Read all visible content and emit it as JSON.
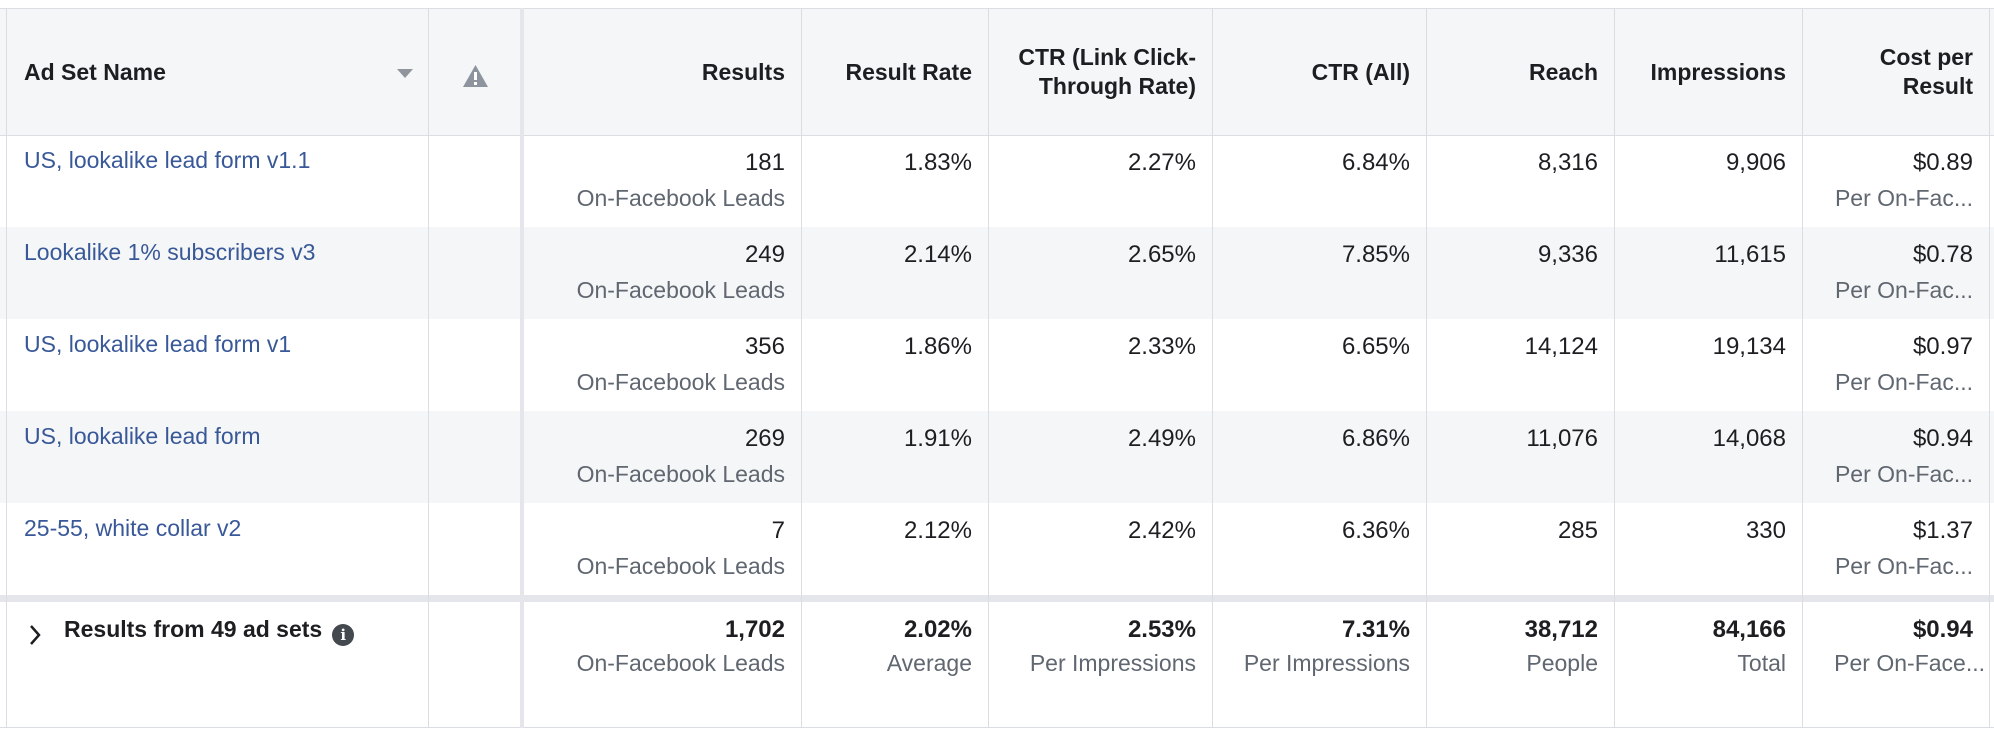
{
  "header": {
    "ad_set_name": "Ad Set Name",
    "warning_icon": "warning-triangle-icon",
    "columns": [
      "Results",
      "Result Rate",
      "CTR (Link Click-Through Rate)",
      "CTR (All)",
      "Reach",
      "Impressions",
      "Cost per Result"
    ]
  },
  "rows": [
    {
      "name": "US, lookalike lead form v1.1",
      "results": "181",
      "results_sub": "On-Facebook Leads",
      "result_rate": "1.83%",
      "ctr_link": "2.27%",
      "ctr_all": "6.84%",
      "reach": "8,316",
      "impressions": "9,906",
      "cost": "$0.89",
      "cost_sub": "Per On-Fac..."
    },
    {
      "name": "Lookalike 1% subscribers v3",
      "results": "249",
      "results_sub": "On-Facebook Leads",
      "result_rate": "2.14%",
      "ctr_link": "2.65%",
      "ctr_all": "7.85%",
      "reach": "9,336",
      "impressions": "11,615",
      "cost": "$0.78",
      "cost_sub": "Per On-Fac..."
    },
    {
      "name": "US, lookalike lead form v1",
      "results": "356",
      "results_sub": "On-Facebook Leads",
      "result_rate": "1.86%",
      "ctr_link": "2.33%",
      "ctr_all": "6.65%",
      "reach": "14,124",
      "impressions": "19,134",
      "cost": "$0.97",
      "cost_sub": "Per On-Fac..."
    },
    {
      "name": "US, lookalike lead form",
      "results": "269",
      "results_sub": "On-Facebook Leads",
      "result_rate": "1.91%",
      "ctr_link": "2.49%",
      "ctr_all": "6.86%",
      "reach": "11,076",
      "impressions": "14,068",
      "cost": "$0.94",
      "cost_sub": "Per On-Fac..."
    },
    {
      "name": "25-55, white collar v2",
      "results": "7",
      "results_sub": "On-Facebook Leads",
      "result_rate": "2.12%",
      "ctr_link": "2.42%",
      "ctr_all": "6.36%",
      "reach": "285",
      "impressions": "330",
      "cost": "$1.37",
      "cost_sub": "Per On-Fac..."
    }
  ],
  "summary": {
    "label": "Results from 49 ad sets",
    "info_icon": "info-icon",
    "expand_icon": "chevron-right-icon",
    "results": "1,702",
    "results_sub": "On-Facebook Leads",
    "result_rate": "2.02%",
    "result_rate_sub": "Average",
    "ctr_link": "2.53%",
    "ctr_link_sub": "Per Impressions",
    "ctr_all": "7.31%",
    "ctr_all_sub": "Per Impressions",
    "reach": "38,712",
    "reach_sub": "People",
    "impressions": "84,166",
    "impressions_sub": "Total",
    "cost": "$0.94",
    "cost_sub": "Per On-Face..."
  },
  "colors": {
    "link": "#385898",
    "header_bg": "#f5f6f7",
    "border": "#dadde1",
    "muted": "#606770"
  }
}
